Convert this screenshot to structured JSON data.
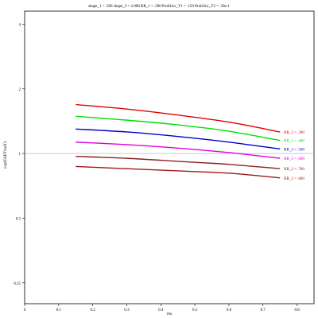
{
  "chart_data": {
    "type": "line",
    "title": "shape_1 = .500  shape_2 = 2.000  RR_1 = .500  ProbUnc_T1 = .150  ProbUnc_T2 = .50e-1",
    "xlabel": "rho",
    "ylabel": "exp(EAET/tauT)",
    "xlim": [
      0,
      0.85
    ],
    "ylim_log": [
      0.2,
      4.6
    ],
    "log_y": true,
    "x_ticks": [
      "0",
      "0.1",
      "0.2",
      "0.3",
      "0.4",
      "0.5",
      "0.6",
      "0.7",
      "0.8"
    ],
    "x_tick_values": [
      0,
      0.1,
      0.2,
      0.3,
      0.4,
      0.5,
      0.6,
      0.7,
      0.8
    ],
    "y_ticks": [
      "0.25",
      "0.5",
      "1",
      "2",
      "4"
    ],
    "y_tick_values": [
      0.25,
      0.5,
      1,
      2,
      4
    ],
    "reference_line_y": 1,
    "x": [
      0.15,
      0.3,
      0.45,
      0.6,
      0.75
    ],
    "series": [
      {
        "name": "RR_2 = .300",
        "color": "#e00000",
        "values": [
          1.69,
          1.61,
          1.51,
          1.4,
          1.26
        ]
      },
      {
        "name": "RR_2 = .400",
        "color": "#00e000",
        "values": [
          1.49,
          1.43,
          1.36,
          1.27,
          1.15
        ]
      },
      {
        "name": "RR_2 = .500",
        "color": "#0000c8",
        "values": [
          1.3,
          1.26,
          1.2,
          1.13,
          1.05
        ]
      },
      {
        "name": "RR_2 = .600",
        "color": "#e000e0",
        "values": [
          1.13,
          1.1,
          1.06,
          1.01,
          0.95
        ]
      },
      {
        "name": "RR_2 = .700",
        "color": "#8b2020",
        "values": [
          0.97,
          0.95,
          0.92,
          0.89,
          0.85
        ]
      },
      {
        "name": "RR_2 = .800",
        "color": "#a01818",
        "values": [
          0.87,
          0.85,
          0.83,
          0.81,
          0.77
        ]
      }
    ]
  }
}
